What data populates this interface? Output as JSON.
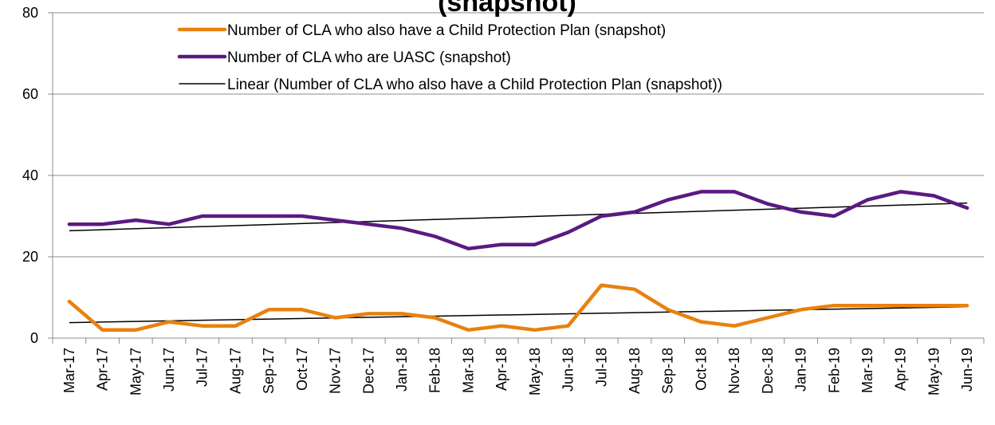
{
  "chart_data": {
    "type": "line",
    "title": "(snapshot)",
    "xlabel": "",
    "ylabel": "",
    "ylim": [
      0,
      80
    ],
    "yticks": [
      0,
      20,
      40,
      60,
      80
    ],
    "grid": true,
    "legend_position": "top-center",
    "categories": [
      "Mar-17",
      "Apr-17",
      "May-17",
      "Jun-17",
      "Jul-17",
      "Aug-17",
      "Sep-17",
      "Oct-17",
      "Nov-17",
      "Dec-17",
      "Jan-18",
      "Feb-18",
      "Mar-18",
      "Apr-18",
      "May-18",
      "Jun-18",
      "Jul-18",
      "Aug-18",
      "Sep-18",
      "Oct-18",
      "Nov-18",
      "Dec-18",
      "Jan-19",
      "Feb-19",
      "Mar-19",
      "Apr-19",
      "May-19",
      "Jun-19"
    ],
    "series": [
      {
        "name": "Number of CLA who also have a Child Protection Plan (snapshot)",
        "color": "#E8810F",
        "values": [
          9,
          2,
          2,
          4,
          3,
          3,
          7,
          7,
          5,
          6,
          6,
          5,
          2,
          3,
          2,
          3,
          13,
          12,
          7,
          4,
          3,
          5,
          7,
          8,
          8,
          8,
          8,
          8
        ]
      },
      {
        "name": "Number of CLA who are UASC (snapshot)",
        "color": "#5B1A82",
        "values": [
          28,
          28,
          29,
          28,
          30,
          30,
          30,
          30,
          29,
          28,
          27,
          25,
          22,
          23,
          23,
          26,
          30,
          31,
          34,
          36,
          36,
          33,
          31,
          30,
          34,
          36,
          35,
          32
        ]
      }
    ],
    "trendlines": [
      {
        "name": "Linear (Number of CLA who also have a Child Protection Plan (snapshot))",
        "color": "#000000",
        "of_series": 0,
        "start": 3.8,
        "end": 7.7
      },
      {
        "name": "",
        "color": "#000000",
        "of_series": 1,
        "start": 26.4,
        "end": 33.2
      }
    ]
  }
}
